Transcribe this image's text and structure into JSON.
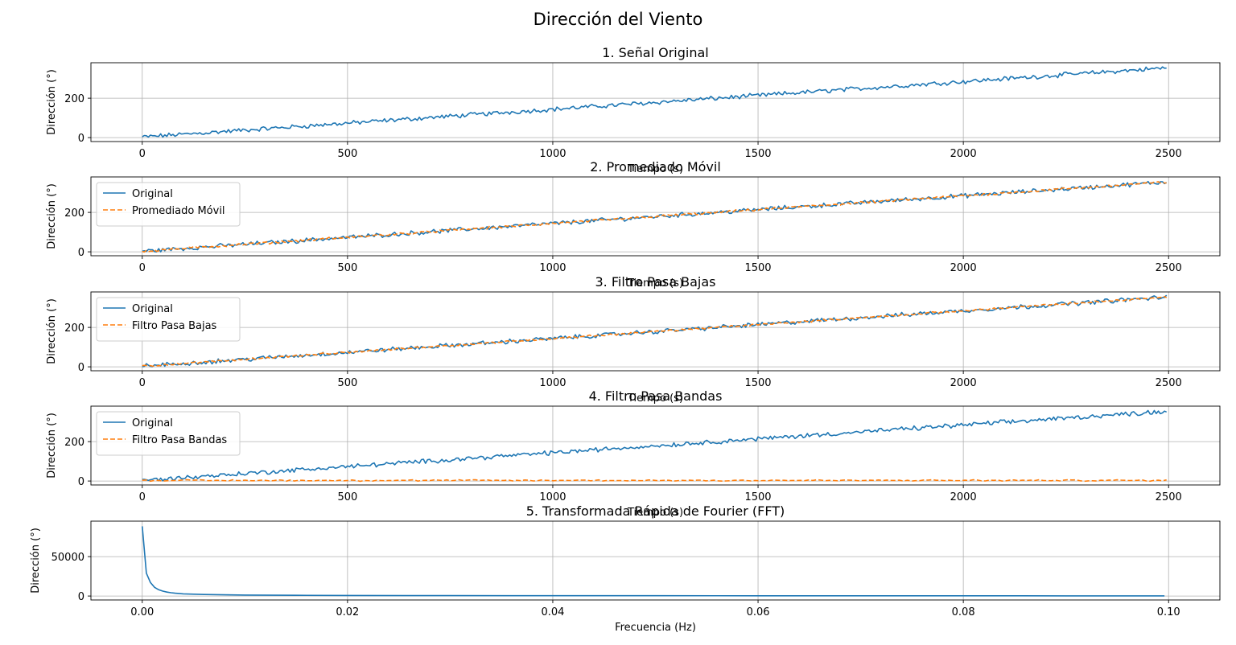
{
  "figure": {
    "suptitle": "Dirección del Viento"
  },
  "colors": {
    "original": "#1f77b4",
    "filtered": "#ff7f0e",
    "grid": "#b0b0b0",
    "axes": "#000000"
  },
  "chart_data": [
    {
      "type": "line",
      "title": "1. Señal Original",
      "xlabel": "Tiempo (s)",
      "ylabel": "Dirección (°)",
      "xlim": [
        -125,
        2625
      ],
      "ylim": [
        -20,
        380
      ],
      "xticks": [
        0,
        500,
        1000,
        1500,
        2000,
        2500
      ],
      "xtick_labels": [
        "0",
        "500",
        "1000",
        "1500",
        "2000",
        "2500"
      ],
      "yticks": [
        0,
        200
      ],
      "ytick_labels": [
        "0",
        "200"
      ],
      "grid": true,
      "legend": null,
      "series": [
        {
          "key": "original",
          "style": "solid",
          "x_range": [
            0,
            2495
          ],
          "n": 500,
          "trend": [
            [
              0,
              3
            ],
            [
              2495,
              354
            ]
          ],
          "noise": 9
        }
      ]
    },
    {
      "type": "line",
      "title": "2. Promediado Móvil",
      "xlabel": "Tiempo (s)",
      "ylabel": "Dirección (°)",
      "xlim": [
        -125,
        2625
      ],
      "ylim": [
        -20,
        380
      ],
      "xticks": [
        0,
        500,
        1000,
        1500,
        2000,
        2500
      ],
      "xtick_labels": [
        "0",
        "500",
        "1000",
        "1500",
        "2000",
        "2500"
      ],
      "yticks": [
        0,
        200
      ],
      "ytick_labels": [
        "0",
        "200"
      ],
      "grid": true,
      "legend": "upper left",
      "series": [
        {
          "name": "Original",
          "key": "original",
          "style": "solid",
          "x_range": [
            0,
            2495
          ],
          "n": 500,
          "trend": [
            [
              0,
              3
            ],
            [
              2495,
              354
            ]
          ],
          "noise": 9
        },
        {
          "name": "Promediado Móvil",
          "key": "filtered",
          "style": "dashed",
          "x_range": [
            0,
            2495
          ],
          "n": 500,
          "trend": [
            [
              0,
              3
            ],
            [
              2495,
              354
            ]
          ],
          "noise": 5
        }
      ]
    },
    {
      "type": "line",
      "title": "3. Filtro Pasa Bajas",
      "xlabel": "Tiempo (s)",
      "ylabel": "Dirección (°)",
      "xlim": [
        -125,
        2625
      ],
      "ylim": [
        -20,
        380
      ],
      "xticks": [
        0,
        500,
        1000,
        1500,
        2000,
        2500
      ],
      "xtick_labels": [
        "0",
        "500",
        "1000",
        "1500",
        "2000",
        "2500"
      ],
      "yticks": [
        0,
        200
      ],
      "ytick_labels": [
        "0",
        "200"
      ],
      "grid": true,
      "legend": "upper left",
      "series": [
        {
          "name": "Original",
          "key": "original",
          "style": "solid",
          "x_range": [
            0,
            2495
          ],
          "n": 500,
          "trend": [
            [
              0,
              3
            ],
            [
              2495,
              354
            ]
          ],
          "noise": 9
        },
        {
          "name": "Filtro Pasa Bajas",
          "key": "filtered",
          "style": "dashed",
          "x_range": [
            0,
            2495
          ],
          "n": 500,
          "trend": [
            [
              0,
              3
            ],
            [
              2495,
              354
            ]
          ],
          "noise": 4
        }
      ]
    },
    {
      "type": "line",
      "title": "4. Filtro Pasa Bandas",
      "xlabel": "Tiempo (s)",
      "ylabel": "Dirección (°)",
      "xlim": [
        -125,
        2625
      ],
      "ylim": [
        -20,
        380
      ],
      "xticks": [
        0,
        500,
        1000,
        1500,
        2000,
        2500
      ],
      "xtick_labels": [
        "0",
        "500",
        "1000",
        "1500",
        "2000",
        "2500"
      ],
      "yticks": [
        0,
        200
      ],
      "ytick_labels": [
        "0",
        "200"
      ],
      "grid": true,
      "legend": "upper left",
      "series": [
        {
          "name": "Original",
          "key": "original",
          "style": "solid",
          "x_range": [
            0,
            2495
          ],
          "n": 500,
          "trend": [
            [
              0,
              3
            ],
            [
              2495,
              354
            ]
          ],
          "noise": 9
        },
        {
          "name": "Filtro Pasa Bandas",
          "key": "filtered",
          "style": "dashed",
          "x_range": [
            0,
            2495
          ],
          "n": 250,
          "trend": [
            [
              0,
              3
            ],
            [
              2495,
              3
            ]
          ],
          "noise": 3
        }
      ]
    },
    {
      "type": "line",
      "title": "5. Transformada Rápida de Fourier (FFT)",
      "xlabel": "Frecuencia (Hz)",
      "ylabel": "Dirección (°)",
      "xlim": [
        -0.005,
        0.105
      ],
      "ylim": [
        -5000,
        95000
      ],
      "xticks": [
        0,
        0.02,
        0.04,
        0.06,
        0.08,
        0.1
      ],
      "xtick_labels": [
        "0.00",
        "0.02",
        "0.04",
        "0.06",
        "0.08",
        "0.10"
      ],
      "yticks": [
        0,
        50000
      ],
      "ytick_labels": [
        "0",
        "50000"
      ],
      "grid": true,
      "legend": null,
      "series": [
        {
          "key": "original",
          "style": "solid",
          "x": [
            0,
            0.0004,
            0.0008,
            0.0012,
            0.0016,
            0.002,
            0.0024,
            0.0028,
            0.0032,
            0.004,
            0.005,
            0.006,
            0.008,
            0.01,
            0.015,
            0.02,
            0.03,
            0.04,
            0.05,
            0.06,
            0.07,
            0.08,
            0.09,
            0.0996
          ],
          "y": [
            88500,
            29000,
            17000,
            11000,
            8000,
            6200,
            5000,
            4200,
            3600,
            2800,
            2300,
            1900,
            1500,
            1200,
            900,
            700,
            550,
            450,
            380,
            330,
            290,
            260,
            230,
            210
          ]
        }
      ]
    }
  ]
}
